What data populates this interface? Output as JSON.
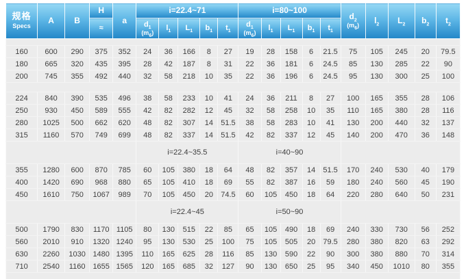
{
  "colors": {
    "header_gradient_top": "#96d8f4",
    "header_gradient_mid": "#5fb7e6",
    "header_gradient_bottom": "#2387c8",
    "header_text": "#ffffff",
    "body_background": "#ececec",
    "body_text": "#3f3f3f",
    "grid_line": "#f8f8f8"
  },
  "table": {
    "header": {
      "specs_cn": "规格",
      "specs_en": "Specs",
      "col_A": "A",
      "col_B": "B",
      "col_H": "H",
      "col_H_approx": "≈",
      "col_a": "a",
      "group1_label": "i=22.4~71",
      "group2_label": "i=80~100",
      "sub_cols": [
        [
          "d_{1}",
          "(m_{6})"
        ],
        [
          "l_{1}"
        ],
        [
          "L_{1}"
        ],
        [
          "b_{1}"
        ],
        [
          "t_{1}"
        ]
      ],
      "col_d2": [
        "d_{2}",
        "(m_{6})"
      ],
      "col_l2": [
        "l_{2}"
      ],
      "col_L2": [
        "L_{2}"
      ],
      "col_b2": [
        "b_{2}"
      ],
      "col_t2": [
        "t_{2}"
      ]
    },
    "sections": [
      {
        "separator": null,
        "rows": [
          [
            "160",
            "600",
            "290",
            "375",
            "352",
            "24",
            "36",
            "166",
            "8",
            "27",
            "19",
            "28",
            "158",
            "6",
            "21.5",
            "75",
            "105",
            "245",
            "20",
            "79.5"
          ],
          [
            "180",
            "665",
            "320",
            "435",
            "395",
            "28",
            "42",
            "187",
            "8",
            "31",
            "22",
            "36",
            "181",
            "6",
            "24.5",
            "85",
            "130",
            "285",
            "22",
            "90"
          ],
          [
            "200",
            "745",
            "355",
            "492",
            "440",
            "32",
            "58",
            "218",
            "10",
            "35",
            "22",
            "36",
            "196",
            "6",
            "24.5",
            "95",
            "130",
            "300",
            "25",
            "100"
          ]
        ]
      },
      {
        "separator": "gap",
        "rows": [
          [
            "224",
            "840",
            "390",
            "535",
            "496",
            "38",
            "58",
            "233",
            "10",
            "41",
            "24",
            "36",
            "211",
            "8",
            "27",
            "100",
            "165",
            "355",
            "28",
            "106"
          ],
          [
            "250",
            "930",
            "450",
            "589",
            "555",
            "42",
            "82",
            "282",
            "12",
            "45",
            "32",
            "58",
            "258",
            "10",
            "35",
            "110",
            "165",
            "380",
            "28",
            "116"
          ],
          [
            "280",
            "1025",
            "500",
            "662",
            "620",
            "48",
            "82",
            "307",
            "14",
            "51.5",
            "38",
            "58",
            "283",
            "10",
            "41",
            "130",
            "200",
            "440",
            "32",
            "137"
          ],
          [
            "315",
            "1160",
            "570",
            "749",
            "699",
            "48",
            "82",
            "337",
            "14",
            "51.5",
            "42",
            "82",
            "337",
            "12",
            "45",
            "140",
            "200",
            "470",
            "36",
            "148"
          ]
        ]
      },
      {
        "separator": [
          "i=22.4~35.5",
          "i=40~90"
        ],
        "rows": [
          [
            "355",
            "1280",
            "600",
            "870",
            "785",
            "60",
            "105",
            "380",
            "18",
            "64",
            "48",
            "82",
            "357",
            "14",
            "51.5",
            "170",
            "240",
            "530",
            "40",
            "179"
          ],
          [
            "400",
            "1420",
            "690",
            "968",
            "880",
            "65",
            "105",
            "410",
            "18",
            "69",
            "55",
            "82",
            "387",
            "16",
            "59",
            "180",
            "240",
            "560",
            "45",
            "190"
          ],
          [
            "450",
            "1610",
            "750",
            "1067",
            "989",
            "70",
            "105",
            "450",
            "20",
            "74.5",
            "60",
            "105",
            "450",
            "18",
            "64",
            "220",
            "280",
            "640",
            "50",
            "231"
          ]
        ]
      },
      {
        "separator": [
          "i=22.4~45",
          "i=50~90"
        ],
        "rows": [
          [
            "500",
            "1790",
            "830",
            "1170",
            "1105",
            "80",
            "130",
            "515",
            "22",
            "85",
            "65",
            "105",
            "490",
            "18",
            "69",
            "240",
            "330",
            "730",
            "56",
            "252"
          ],
          [
            "560",
            "2010",
            "910",
            "1320",
            "1240",
            "95",
            "130",
            "530",
            "25",
            "100",
            "75",
            "105",
            "505",
            "20",
            "79.5",
            "280",
            "380",
            "820",
            "63",
            "292"
          ],
          [
            "630",
            "2260",
            "1030",
            "1480",
            "1395",
            "110",
            "165",
            "625",
            "28",
            "116",
            "85",
            "130",
            "590",
            "22",
            "90",
            "300",
            "380",
            "880",
            "70",
            "314"
          ],
          [
            "710",
            "2540",
            "1160",
            "1655",
            "1565",
            "120",
            "165",
            "685",
            "32",
            "127",
            "90",
            "130",
            "650",
            "25",
            "95",
            "340",
            "450",
            "1010",
            "80",
            "355"
          ]
        ]
      }
    ]
  }
}
